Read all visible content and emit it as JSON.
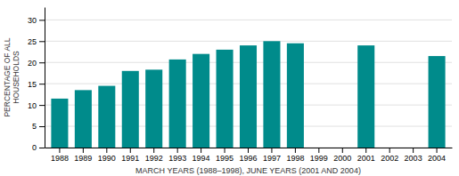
{
  "chart_data": {
    "type": "bar",
    "categories": [
      "1988",
      "1989",
      "1990",
      "1991",
      "1992",
      "1993",
      "1994",
      "1995",
      "1996",
      "1997",
      "1998",
      "1999",
      "2000",
      "2001",
      "2002",
      "2003",
      "2004"
    ],
    "values": [
      11.5,
      13.5,
      14.5,
      18.0,
      18.3,
      20.7,
      22.0,
      23.0,
      24.0,
      25.0,
      24.5,
      null,
      null,
      24.0,
      null,
      null,
      21.5
    ],
    "color": "#008b8b",
    "xlabel": "MARCH YEARS (1988–1998), JUNE YEARS (2001 AND 2004)",
    "ylabel": "PERCENTAGE OF ALL\nHOUSEHOLDS",
    "ylim": [
      0,
      33
    ],
    "yticks": [
      0,
      5,
      10,
      15,
      20,
      25,
      30
    ],
    "grid": true
  }
}
